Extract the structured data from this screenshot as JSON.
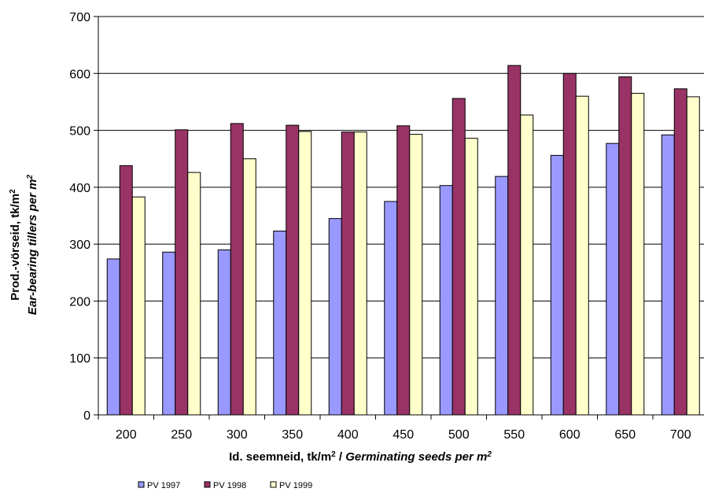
{
  "chart_data": {
    "type": "bar",
    "categories": [
      "200",
      "250",
      "300",
      "350",
      "400",
      "450",
      "500",
      "550",
      "600",
      "650",
      "700"
    ],
    "series": [
      {
        "name": "PV 1997",
        "color": "#9999ff",
        "values": [
          274,
          286,
          290,
          323,
          345,
          375,
          403,
          419,
          456,
          477,
          492
        ]
      },
      {
        "name": "PV 1998",
        "color": "#993366",
        "values": [
          438,
          501,
          512,
          509,
          497,
          508,
          556,
          614,
          600,
          594,
          573
        ]
      },
      {
        "name": "PV 1999",
        "color": "#ffffcc",
        "values": [
          383,
          426,
          450,
          498,
          497,
          493,
          486,
          527,
          560,
          565,
          559
        ]
      }
    ],
    "ylim": [
      0,
      700
    ],
    "yticks": [
      "0",
      "100",
      "200",
      "300",
      "400",
      "500",
      "600",
      "700"
    ],
    "ylabel_line1_main": "Prod.-vörseid, tk/m",
    "ylabel_line1_sup": "2",
    "ylabel_line2_main": "Ear-bearing tillers per m",
    "ylabel_line2_sup": "2",
    "xlabel_main": "Id. seemneid, tk/m",
    "xlabel_sup": "2",
    "xlabel_sep": " / ",
    "xlabel_italic": "Germinating seeds per m",
    "xlabel_italic_sup": "2",
    "grid": true,
    "legend_position": "bottom-left"
  }
}
